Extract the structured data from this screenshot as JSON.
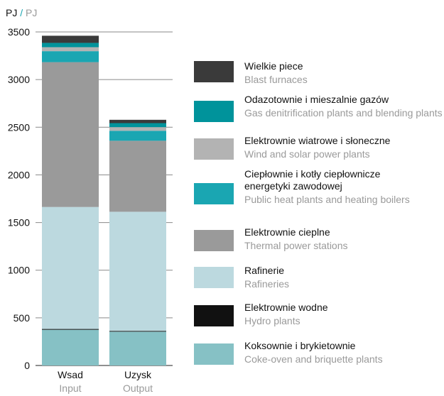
{
  "chart_data": {
    "type": "bar",
    "stacked": true,
    "unit_label": "PJ",
    "unit_label_en": "PJ",
    "ylim": [
      0,
      3500
    ],
    "yticks": [
      0,
      500,
      1000,
      1500,
      2000,
      2500,
      3000,
      3500
    ],
    "grid": true,
    "legend_position": "right",
    "categories": [
      {
        "label": "Wsad",
        "label_en": "Input"
      },
      {
        "label": "Uzysk",
        "label_en": "Output"
      }
    ],
    "series": [
      {
        "name": "Koksownie i brykietownie",
        "name_en": "Coke-oven and briquette plants",
        "color": "#86c1c5",
        "values": [
          375,
          355
        ]
      },
      {
        "name": "Elektrownie wodne",
        "name_en": "Hydro plants",
        "color": "#111111",
        "values": [
          8,
          8
        ]
      },
      {
        "name": "Rafinerie",
        "name_en": "Rafineries",
        "color": "#bcd9df",
        "values": [
          1280,
          1250
        ]
      },
      {
        "name": "Elektrownie cieplne",
        "name_en": "Thermal power stations",
        "color": "#9a9a9a",
        "values": [
          1520,
          745
        ]
      },
      {
        "name": "Ciepłownie i kotły ciepłownicze energetyki zawodowej",
        "name_en": "Public heat plants and heating boilers",
        "color": "#1aa6b2",
        "values": [
          115,
          105
        ]
      },
      {
        "name": "Elektrownie wiatrowe i słoneczne",
        "name_en": "Wind and solar power plants",
        "color": "#b3b3b3",
        "values": [
          42,
          38
        ]
      },
      {
        "name": "Odazotownie i mieszalnie gazów",
        "name_en": "Gas denitrification plants and blending plants",
        "color": "#00939b",
        "values": [
          45,
          42
        ]
      },
      {
        "name": "Wielkie piece",
        "name_en": "Blast furnaces",
        "color": "#3a3a3a",
        "values": [
          75,
          35
        ]
      }
    ]
  }
}
